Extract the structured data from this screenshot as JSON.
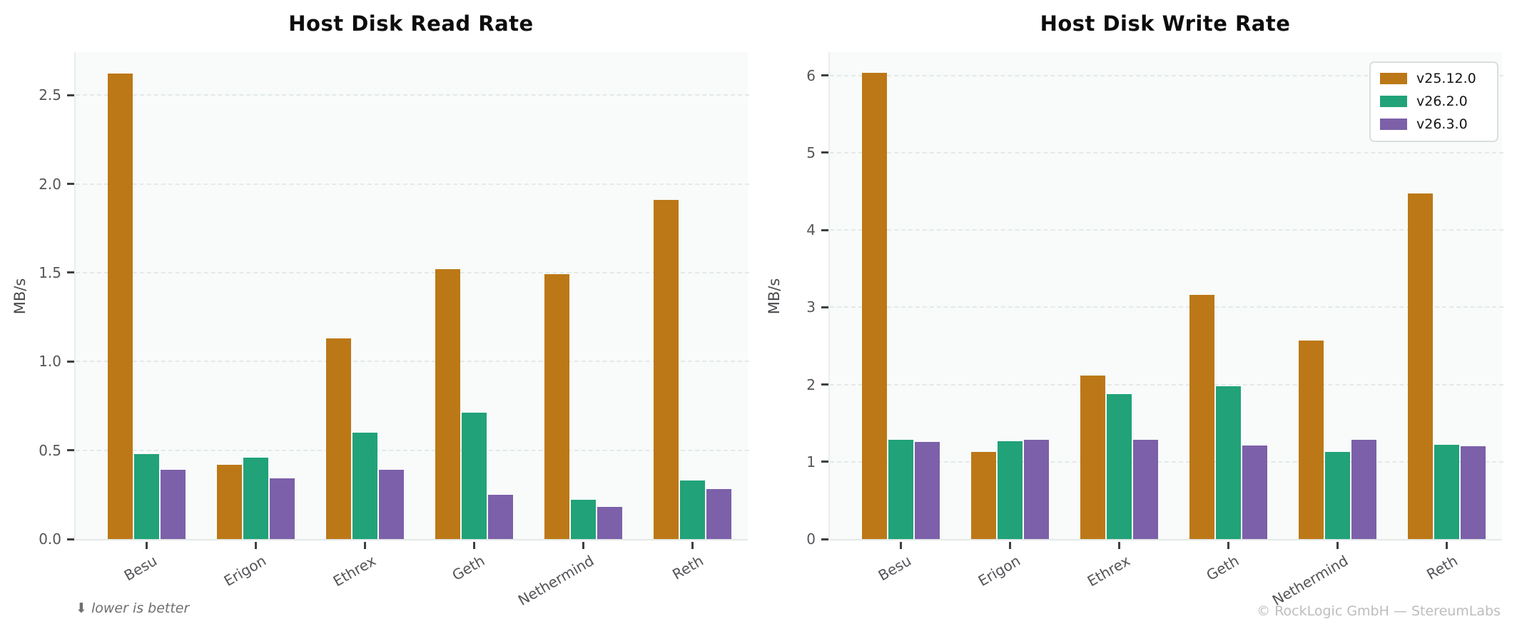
{
  "figure": {
    "background": "#ffffff",
    "note": "⬇ lower is better",
    "attribution": "© RockLogic GmbH — StereumLabs"
  },
  "legend": {
    "position": "top-right-of-write-chart",
    "entries": [
      {
        "label": "v25.12.0",
        "color": "#bc7817"
      },
      {
        "label": "v26.2.0",
        "color": "#21a279"
      },
      {
        "label": "v26.3.0",
        "color": "#7c60a9"
      }
    ]
  },
  "chart_data": [
    {
      "type": "bar",
      "title": "Host Disk Read Rate",
      "xlabel": "",
      "ylabel": "MB/s",
      "categories": [
        "Besu",
        "Erigon",
        "Ethrex",
        "Geth",
        "Nethermind",
        "Reth"
      ],
      "series": [
        {
          "name": "v25.12.0",
          "color": "#bc7817",
          "values": [
            2.62,
            0.42,
            1.13,
            1.52,
            1.49,
            1.91
          ]
        },
        {
          "name": "v26.2.0",
          "color": "#21a279",
          "values": [
            0.48,
            0.46,
            0.6,
            0.71,
            0.22,
            0.33
          ]
        },
        {
          "name": "v26.3.0",
          "color": "#7c60a9",
          "values": [
            0.39,
            0.34,
            0.39,
            0.25,
            0.18,
            0.28
          ]
        }
      ],
      "ylim": [
        0,
        2.75
      ],
      "yticks": [
        0.0,
        0.5,
        1.0,
        1.5,
        2.0,
        2.5
      ],
      "ytick_labels": [
        "0.0",
        "0.5",
        "1.0",
        "1.5",
        "2.0",
        "2.5"
      ],
      "grid": "horizontal-dashed",
      "legend_visible": false
    },
    {
      "type": "bar",
      "title": "Host Disk Write Rate",
      "xlabel": "",
      "ylabel": "MB/s",
      "categories": [
        "Besu",
        "Erigon",
        "Ethrex",
        "Geth",
        "Nethermind",
        "Reth"
      ],
      "series": [
        {
          "name": "v25.12.0",
          "color": "#bc7817",
          "values": [
            6.03,
            1.13,
            2.12,
            3.16,
            2.57,
            4.47
          ]
        },
        {
          "name": "v26.2.0",
          "color": "#21a279",
          "values": [
            1.28,
            1.27,
            1.88,
            1.98,
            1.13,
            1.22
          ]
        },
        {
          "name": "v26.3.0",
          "color": "#7c60a9",
          "values": [
            1.26,
            1.28,
            1.28,
            1.21,
            1.28,
            1.2
          ]
        }
      ],
      "ylim": [
        0,
        6.32
      ],
      "yticks": [
        0,
        1,
        2,
        3,
        4,
        5,
        6
      ],
      "ytick_labels": [
        "0",
        "1",
        "2",
        "3",
        "4",
        "5",
        "6"
      ],
      "grid": "horizontal-dashed",
      "legend_visible": true
    }
  ]
}
